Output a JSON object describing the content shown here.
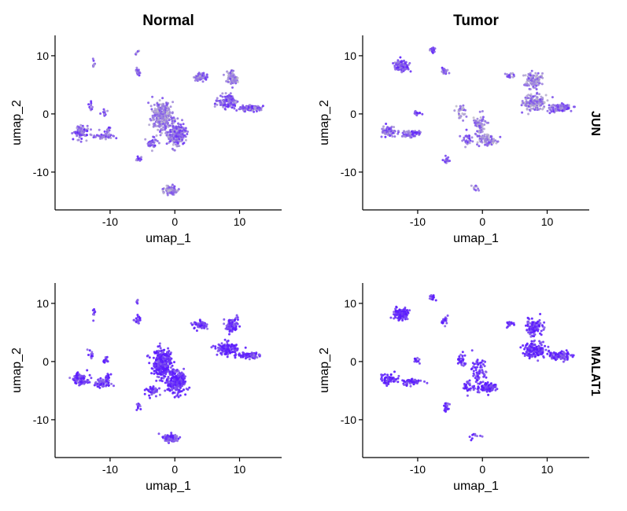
{
  "chart_data": {
    "type": "scatter",
    "description_kind": "UMAP feature plot faceted by gene (rows) and condition (columns)",
    "columns": [
      "Normal",
      "Tumor"
    ],
    "rows": [
      "JUN",
      "MALAT1"
    ],
    "xlabel": "umap_1",
    "ylabel": "umap_2",
    "xlim": [
      -18.5,
      16.5
    ],
    "ylim": [
      -16.5,
      13.5
    ],
    "xticks": [
      -10,
      0,
      10
    ],
    "yticks": [
      -10,
      0,
      10
    ],
    "xtick_labels": [
      "-10",
      "0",
      "10"
    ],
    "ytick_labels": [
      "-10",
      "0",
      "10"
    ],
    "color_scale": {
      "low": "#c8c8c8",
      "high": "#5a19ff"
    },
    "grid": false,
    "legend": "none",
    "panels": [
      {
        "condition": "Normal",
        "gene": "JUN",
        "clusters": [
          {
            "x": -14.5,
            "y": -3.0,
            "sx": 1.2,
            "sy": 0.9,
            "n": 90,
            "expr": 0.6
          },
          {
            "x": -11.0,
            "y": -3.8,
            "sx": 1.3,
            "sy": 0.6,
            "n": 50,
            "expr": 0.6
          },
          {
            "x": -10.3,
            "y": -2.6,
            "sx": 0.4,
            "sy": 0.4,
            "n": 12,
            "expr": 0.6
          },
          {
            "x": -10.8,
            "y": 0.2,
            "sx": 0.4,
            "sy": 0.5,
            "n": 14,
            "expr": 0.6
          },
          {
            "x": -13.0,
            "y": 1.2,
            "sx": 0.5,
            "sy": 0.8,
            "n": 10,
            "expr": 0.6
          },
          {
            "x": -12.5,
            "y": 8.3,
            "sx": 0.2,
            "sy": 0.8,
            "n": 8,
            "expr": 0.5
          },
          {
            "x": -5.8,
            "y": 7.2,
            "sx": 0.4,
            "sy": 0.7,
            "n": 18,
            "expr": 0.6
          },
          {
            "x": -5.8,
            "y": 10.4,
            "sx": 0.3,
            "sy": 0.4,
            "n": 6,
            "expr": 0.5
          },
          {
            "x": -2.0,
            "y": -0.5,
            "sx": 1.3,
            "sy": 2.2,
            "n": 320,
            "expr": 0.4
          },
          {
            "x": 0.3,
            "y": -3.5,
            "sx": 1.3,
            "sy": 1.8,
            "n": 220,
            "expr": 0.5
          },
          {
            "x": -3.5,
            "y": -5.0,
            "sx": 0.8,
            "sy": 1.0,
            "n": 35,
            "expr": 0.6
          },
          {
            "x": -5.6,
            "y": -7.6,
            "sx": 0.3,
            "sy": 0.6,
            "n": 12,
            "expr": 0.6
          },
          {
            "x": -0.6,
            "y": -13.1,
            "sx": 1.0,
            "sy": 0.6,
            "n": 100,
            "expr": 0.4
          },
          {
            "x": 4.0,
            "y": 6.3,
            "sx": 1.0,
            "sy": 0.6,
            "n": 70,
            "expr": 0.5
          },
          {
            "x": 8.8,
            "y": 6.3,
            "sx": 0.9,
            "sy": 1.1,
            "n": 80,
            "expr": 0.4
          },
          {
            "x": 8.0,
            "y": 2.2,
            "sx": 1.5,
            "sy": 1.0,
            "n": 120,
            "expr": 0.6
          },
          {
            "x": 11.5,
            "y": 1.0,
            "sx": 1.6,
            "sy": 0.5,
            "n": 90,
            "expr": 0.6
          }
        ]
      },
      {
        "condition": "Tumor",
        "gene": "JUN",
        "clusters": [
          {
            "x": -12.5,
            "y": 8.2,
            "sx": 0.9,
            "sy": 0.8,
            "n": 160,
            "expr": 0.7
          },
          {
            "x": -7.8,
            "y": 11.0,
            "sx": 0.4,
            "sy": 0.4,
            "n": 20,
            "expr": 0.6
          },
          {
            "x": -5.8,
            "y": 7.2,
            "sx": 0.5,
            "sy": 0.6,
            "n": 22,
            "expr": 0.6
          },
          {
            "x": -14.5,
            "y": -3.0,
            "sx": 1.2,
            "sy": 0.9,
            "n": 70,
            "expr": 0.6
          },
          {
            "x": -11.0,
            "y": -3.5,
            "sx": 1.5,
            "sy": 0.5,
            "n": 60,
            "expr": 0.6
          },
          {
            "x": -10.2,
            "y": 0.2,
            "sx": 0.5,
            "sy": 0.4,
            "n": 14,
            "expr": 0.6
          },
          {
            "x": -3.2,
            "y": 0.3,
            "sx": 0.7,
            "sy": 1.0,
            "n": 30,
            "expr": 0.4
          },
          {
            "x": -2.3,
            "y": -4.5,
            "sx": 0.7,
            "sy": 1.0,
            "n": 30,
            "expr": 0.6
          },
          {
            "x": -0.5,
            "y": -2.0,
            "sx": 1.0,
            "sy": 2.0,
            "n": 70,
            "expr": 0.4
          },
          {
            "x": 0.8,
            "y": -4.5,
            "sx": 1.3,
            "sy": 0.8,
            "n": 90,
            "expr": 0.4
          },
          {
            "x": -5.5,
            "y": -7.8,
            "sx": 0.4,
            "sy": 0.6,
            "n": 20,
            "expr": 0.6
          },
          {
            "x": -1.2,
            "y": -12.8,
            "sx": 1.1,
            "sy": 0.5,
            "n": 10,
            "expr": 0.4
          },
          {
            "x": 4.2,
            "y": 6.5,
            "sx": 0.6,
            "sy": 0.5,
            "n": 20,
            "expr": 0.5
          },
          {
            "x": 8.0,
            "y": 5.8,
            "sx": 1.2,
            "sy": 1.3,
            "n": 100,
            "expr": 0.4
          },
          {
            "x": 8.0,
            "y": 2.0,
            "sx": 1.6,
            "sy": 1.1,
            "n": 160,
            "expr": 0.4
          },
          {
            "x": 12.0,
            "y": 1.0,
            "sx": 1.6,
            "sy": 0.6,
            "n": 110,
            "expr": 0.6
          }
        ]
      },
      {
        "condition": "Normal",
        "gene": "MALAT1",
        "clusters": [
          {
            "x": -14.5,
            "y": -3.0,
            "sx": 1.2,
            "sy": 0.9,
            "n": 90,
            "expr": 0.85
          },
          {
            "x": -11.0,
            "y": -3.8,
            "sx": 1.3,
            "sy": 0.6,
            "n": 50,
            "expr": 0.85
          },
          {
            "x": -10.3,
            "y": -2.6,
            "sx": 0.4,
            "sy": 0.4,
            "n": 12,
            "expr": 0.85
          },
          {
            "x": -10.8,
            "y": 0.2,
            "sx": 0.4,
            "sy": 0.5,
            "n": 14,
            "expr": 0.85
          },
          {
            "x": -13.0,
            "y": 1.2,
            "sx": 0.5,
            "sy": 0.8,
            "n": 10,
            "expr": 0.85
          },
          {
            "x": -12.5,
            "y": 8.3,
            "sx": 0.2,
            "sy": 0.8,
            "n": 8,
            "expr": 0.85
          },
          {
            "x": -5.8,
            "y": 7.2,
            "sx": 0.4,
            "sy": 0.7,
            "n": 18,
            "expr": 0.85
          },
          {
            "x": -5.8,
            "y": 10.4,
            "sx": 0.3,
            "sy": 0.4,
            "n": 6,
            "expr": 0.85
          },
          {
            "x": -2.0,
            "y": -0.5,
            "sx": 1.3,
            "sy": 2.2,
            "n": 320,
            "expr": 0.95
          },
          {
            "x": 0.3,
            "y": -3.5,
            "sx": 1.3,
            "sy": 1.8,
            "n": 220,
            "expr": 0.95
          },
          {
            "x": -3.5,
            "y": -5.0,
            "sx": 0.8,
            "sy": 1.0,
            "n": 35,
            "expr": 0.9
          },
          {
            "x": -5.6,
            "y": -7.6,
            "sx": 0.3,
            "sy": 0.6,
            "n": 12,
            "expr": 0.85
          },
          {
            "x": -0.6,
            "y": -13.1,
            "sx": 1.0,
            "sy": 0.6,
            "n": 100,
            "expr": 0.75
          },
          {
            "x": 4.0,
            "y": 6.3,
            "sx": 1.0,
            "sy": 0.6,
            "n": 70,
            "expr": 0.85
          },
          {
            "x": 8.8,
            "y": 6.3,
            "sx": 0.9,
            "sy": 1.1,
            "n": 80,
            "expr": 0.9
          },
          {
            "x": 8.0,
            "y": 2.2,
            "sx": 1.5,
            "sy": 1.0,
            "n": 120,
            "expr": 0.9
          },
          {
            "x": 11.5,
            "y": 1.0,
            "sx": 1.6,
            "sy": 0.5,
            "n": 90,
            "expr": 0.85
          }
        ]
      },
      {
        "condition": "Tumor",
        "gene": "MALAT1",
        "clusters": [
          {
            "x": -12.5,
            "y": 8.2,
            "sx": 0.9,
            "sy": 0.8,
            "n": 160,
            "expr": 0.95
          },
          {
            "x": -7.8,
            "y": 11.0,
            "sx": 0.4,
            "sy": 0.4,
            "n": 20,
            "expr": 0.9
          },
          {
            "x": -5.8,
            "y": 7.2,
            "sx": 0.5,
            "sy": 0.6,
            "n": 22,
            "expr": 0.9
          },
          {
            "x": -14.5,
            "y": -3.0,
            "sx": 1.2,
            "sy": 0.9,
            "n": 70,
            "expr": 0.9
          },
          {
            "x": -11.0,
            "y": -3.5,
            "sx": 1.5,
            "sy": 0.5,
            "n": 60,
            "expr": 0.9
          },
          {
            "x": -10.2,
            "y": 0.2,
            "sx": 0.5,
            "sy": 0.4,
            "n": 14,
            "expr": 0.9
          },
          {
            "x": -3.2,
            "y": 0.3,
            "sx": 0.7,
            "sy": 1.0,
            "n": 30,
            "expr": 0.9
          },
          {
            "x": -2.3,
            "y": -4.5,
            "sx": 0.7,
            "sy": 1.0,
            "n": 30,
            "expr": 0.9
          },
          {
            "x": -0.5,
            "y": -2.0,
            "sx": 1.0,
            "sy": 2.0,
            "n": 70,
            "expr": 0.9
          },
          {
            "x": 0.8,
            "y": -4.5,
            "sx": 1.3,
            "sy": 0.8,
            "n": 90,
            "expr": 0.95
          },
          {
            "x": -5.5,
            "y": -7.8,
            "sx": 0.4,
            "sy": 0.6,
            "n": 20,
            "expr": 0.9
          },
          {
            "x": -1.2,
            "y": -12.8,
            "sx": 1.1,
            "sy": 0.5,
            "n": 10,
            "expr": 0.8
          },
          {
            "x": 4.2,
            "y": 6.5,
            "sx": 0.6,
            "sy": 0.5,
            "n": 20,
            "expr": 0.9
          },
          {
            "x": 8.0,
            "y": 5.8,
            "sx": 1.2,
            "sy": 1.3,
            "n": 100,
            "expr": 0.9
          },
          {
            "x": 8.0,
            "y": 2.0,
            "sx": 1.6,
            "sy": 1.1,
            "n": 160,
            "expr": 0.95
          },
          {
            "x": 12.0,
            "y": 1.0,
            "sx": 1.6,
            "sy": 0.6,
            "n": 110,
            "expr": 0.9
          }
        ]
      }
    ]
  }
}
